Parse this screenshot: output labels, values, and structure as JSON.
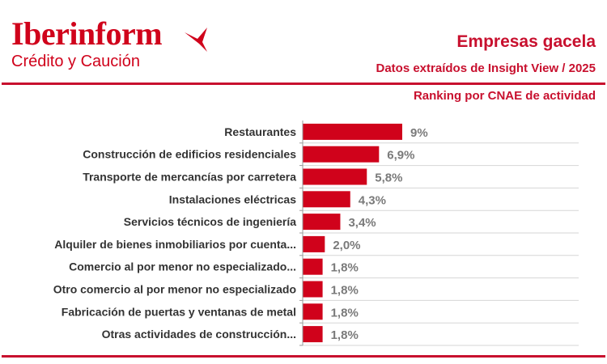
{
  "brand": {
    "name": "Iberinform",
    "tagline": "Crédito y Caución",
    "color": "#d0021b"
  },
  "header": {
    "title": "Empresas gacela",
    "subtitle": "Datos extraídos de Insight View / 2025",
    "section": "Ranking por CNAE de actividad"
  },
  "chart_data": {
    "type": "bar",
    "orientation": "horizontal",
    "title": "Ranking por CNAE de actividad",
    "categories": [
      "Restaurantes",
      "Construcción de edificios residenciales",
      "Transporte de mercancías por carretera",
      "Instalaciones eléctricas",
      "Servicios técnicos de ingeniería",
      "Alquiler de bienes inmobiliarios por cuenta...",
      "Comercio al por menor no especializado...",
      "Otro comercio al por menor no especializado",
      "Fabricación de puertas y ventanas de metal",
      "Otras actividades de construcción..."
    ],
    "values": [
      9,
      6.9,
      5.8,
      4.3,
      3.4,
      2.0,
      1.8,
      1.8,
      1.8,
      1.8
    ],
    "value_labels": [
      "9%",
      "6,9%",
      "5,8%",
      "4,3%",
      "3,4%",
      "2,0%",
      "1,8%",
      "1,8%",
      "1,8%",
      "1,8%"
    ],
    "unit": "%",
    "bar_color": "#d0021b",
    "xlim": [
      0,
      25
    ],
    "grid": "horizontal separators"
  }
}
